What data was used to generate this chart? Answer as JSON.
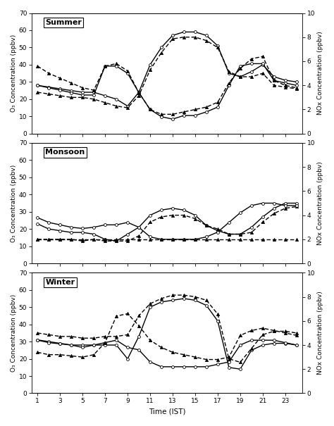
{
  "hours": [
    1,
    2,
    3,
    4,
    5,
    6,
    7,
    8,
    9,
    10,
    11,
    12,
    13,
    14,
    15,
    16,
    17,
    18,
    19,
    20,
    21,
    22,
    23,
    24
  ],
  "panels": [
    {
      "title": "Summer",
      "o3_solid_circle": [
        28,
        27,
        26,
        25,
        24,
        24,
        22,
        20,
        16,
        24,
        40,
        50,
        57,
        59,
        59,
        57,
        51,
        35,
        33,
        36,
        40,
        33,
        31,
        30
      ],
      "o3_dash_triangle": [
        24,
        23,
        22,
        21,
        21,
        20,
        18,
        16,
        15,
        22,
        37,
        47,
        55,
        56,
        56,
        54,
        50,
        36,
        33,
        33,
        35,
        28,
        27,
        26
      ],
      "nox_solid_circle": [
        4.0,
        3.8,
        3.6,
        3.4,
        3.2,
        3.2,
        5.6,
        5.6,
        5.0,
        3.4,
        2.0,
        1.4,
        1.2,
        1.5,
        1.5,
        1.8,
        2.2,
        4.0,
        5.6,
        5.8,
        5.8,
        4.4,
        4.2,
        4.0
      ],
      "nox_dash_triangle": [
        5.6,
        5.0,
        4.6,
        4.2,
        3.8,
        3.6,
        5.6,
        5.8,
        5.2,
        3.4,
        2.0,
        1.6,
        1.6,
        1.8,
        2.0,
        2.2,
        2.6,
        4.2,
        5.4,
        6.2,
        6.4,
        4.4,
        4.0,
        3.8
      ]
    },
    {
      "title": "Monsoon",
      "o3_solid_circle": [
        23,
        20,
        19,
        18,
        18,
        17,
        14,
        13,
        17,
        21,
        28,
        31,
        32,
        31,
        28,
        22,
        19,
        17,
        17,
        21,
        27,
        32,
        35,
        35
      ],
      "o3_dash_triangle": [
        14,
        14,
        14,
        14,
        13,
        14,
        13,
        13,
        13,
        16,
        24,
        27,
        28,
        28,
        26,
        22,
        20,
        17,
        17,
        18,
        24,
        29,
        32,
        33
      ],
      "nox_solid_circle": [
        3.8,
        3.4,
        3.2,
        3.0,
        2.9,
        3.0,
        3.2,
        3.2,
        3.4,
        3.0,
        2.2,
        2.0,
        2.0,
        2.0,
        2.0,
        2.2,
        2.6,
        3.4,
        4.2,
        4.8,
        5.0,
        5.0,
        4.8,
        4.8
      ],
      "nox_dash_triangle": [
        2.0,
        2.0,
        2.0,
        2.0,
        2.0,
        2.0,
        2.0,
        2.0,
        2.0,
        2.0,
        2.0,
        2.0,
        2.0,
        2.0,
        2.0,
        2.0,
        2.0,
        2.0,
        2.0,
        2.0,
        2.0,
        2.0,
        2.0,
        2.0
      ]
    },
    {
      "title": "Winter",
      "o3_solid_circle": [
        31,
        30,
        29,
        28,
        28,
        28,
        28,
        28,
        20,
        33,
        50,
        53,
        54,
        55,
        54,
        51,
        42,
        15,
        14,
        25,
        28,
        29,
        29,
        28
      ],
      "o3_dash_triangle": [
        35,
        34,
        33,
        33,
        32,
        32,
        33,
        33,
        34,
        45,
        52,
        55,
        57,
        57,
        56,
        54,
        46,
        20,
        18,
        26,
        34,
        36,
        36,
        35
      ],
      "nox_solid_circle": [
        4.4,
        4.2,
        4.1,
        4.0,
        3.8,
        4.0,
        4.2,
        4.4,
        3.8,
        3.6,
        2.6,
        2.2,
        2.2,
        2.2,
        2.2,
        2.2,
        2.4,
        2.6,
        4.0,
        4.4,
        4.4,
        4.4,
        4.2,
        4.0
      ],
      "nox_dash_triangle": [
        3.4,
        3.2,
        3.2,
        3.1,
        3.0,
        3.2,
        4.2,
        6.4,
        6.6,
        5.6,
        4.4,
        3.8,
        3.4,
        3.2,
        3.0,
        2.8,
        2.8,
        3.0,
        4.8,
        5.2,
        5.4,
        5.2,
        5.0,
        4.8
      ]
    }
  ],
  "o3_ylim": [
    0,
    70
  ],
  "nox_ylim": [
    0,
    10
  ],
  "o3_yticks": [
    0,
    10,
    20,
    30,
    40,
    50,
    60,
    70
  ],
  "nox_yticks": [
    0,
    2,
    4,
    6,
    8,
    10
  ],
  "xticks": [
    1,
    3,
    5,
    7,
    9,
    11,
    13,
    15,
    17,
    19,
    21,
    23
  ],
  "xlabel": "Time (IST)",
  "o3_ylabel": "O₃ Concentration (ppbv)",
  "nox_ylabel": "NOx Concentration (ppbv)",
  "background_color": "#ffffff"
}
